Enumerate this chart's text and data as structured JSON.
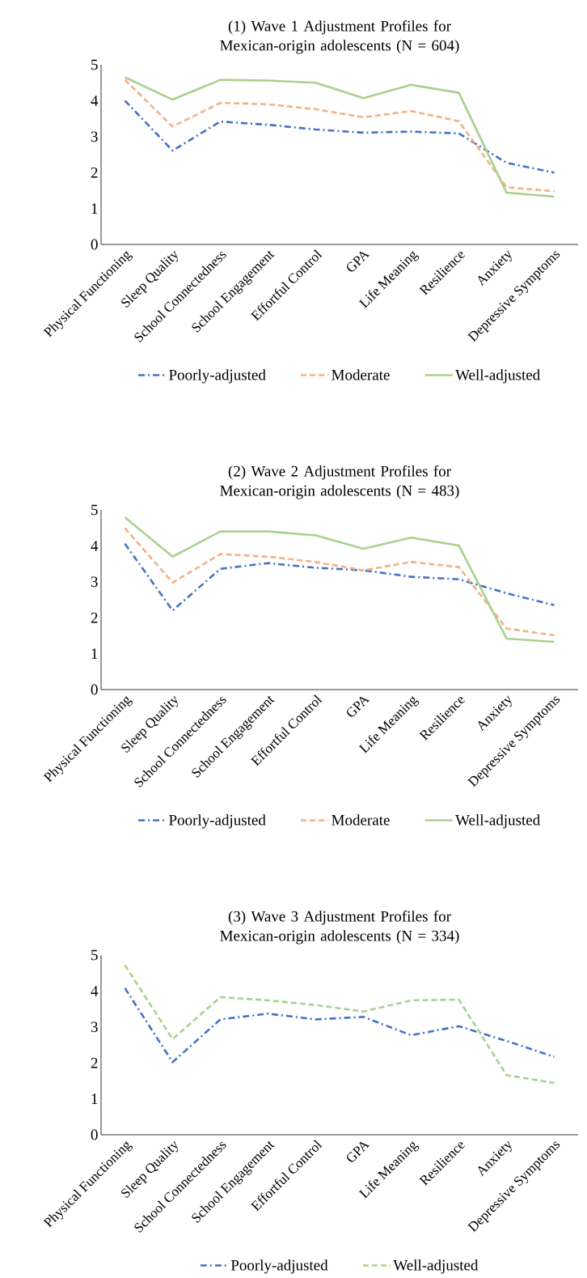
{
  "chart_data": [
    {
      "type": "line",
      "title": "(1) Wave 1 Adjustment Profiles for Mexican-origin adolescents (N = 604)",
      "categories": [
        "Physical Functioning",
        "Sleep Quality",
        "School Connectedness",
        "School Engagement",
        "Effortful Control",
        "GPA",
        "Life Meaning",
        "Resilience",
        "Anxiety",
        "Depressive Symptoms"
      ],
      "ylim": [
        0,
        5
      ],
      "yticks": [
        0,
        1,
        2,
        3,
        4,
        5
      ],
      "grid": false,
      "legend": "bottom",
      "series": [
        {
          "name": "Poorly-adjusted",
          "color": "#4472c4",
          "line_style": "dashdot",
          "values": [
            4.0,
            2.61,
            3.42,
            3.33,
            3.2,
            3.11,
            3.14,
            3.09,
            2.27,
            2.0
          ]
        },
        {
          "name": "Moderate",
          "color": "#f4b183",
          "line_style": "dashed",
          "values": [
            4.58,
            3.28,
            3.94,
            3.9,
            3.76,
            3.54,
            3.71,
            3.43,
            1.59,
            1.48
          ]
        },
        {
          "name": "Well-adjusted",
          "color": "#a9d18e",
          "line_style": "solid",
          "values": [
            4.65,
            4.03,
            4.58,
            4.56,
            4.5,
            4.07,
            4.44,
            4.22,
            1.44,
            1.33
          ]
        }
      ]
    },
    {
      "type": "line",
      "title": "(2) Wave 2 Adjustment Profiles for Mexican-origin adolescents (N = 483)",
      "categories": [
        "Physical Functioning",
        "Sleep Quality",
        "School Connectedness",
        "School Engagement",
        "Effortful Control",
        "GPA",
        "Life Meaning",
        "Resilience",
        "Anxiety",
        "Depressive Symptoms"
      ],
      "ylim": [
        0,
        5
      ],
      "yticks": [
        0,
        1,
        2,
        3,
        4,
        5
      ],
      "grid": false,
      "legend": "bottom",
      "series": [
        {
          "name": "Poorly-adjusted",
          "color": "#4472c4",
          "line_style": "dashdot",
          "values": [
            4.06,
            2.2,
            3.36,
            3.52,
            3.39,
            3.32,
            3.14,
            3.07,
            2.68,
            2.35
          ]
        },
        {
          "name": "Moderate",
          "color": "#f4b183",
          "line_style": "dashed",
          "values": [
            4.49,
            2.98,
            3.77,
            3.7,
            3.55,
            3.32,
            3.55,
            3.41,
            1.7,
            1.51
          ]
        },
        {
          "name": "Well-adjusted",
          "color": "#a9d18e",
          "line_style": "solid",
          "values": [
            4.79,
            3.7,
            4.4,
            4.4,
            4.29,
            3.92,
            4.23,
            4.01,
            1.42,
            1.33
          ]
        }
      ]
    },
    {
      "type": "line",
      "title": "(3) Wave 3 Adjustment Profiles for Mexican-origin adolescents (N = 334)",
      "categories": [
        "Physical Functioning",
        "Sleep Quality",
        "School Connectedness",
        "School Engagement",
        "Effortful Control",
        "GPA",
        "Life Meaning",
        "Resilience",
        "Anxiety",
        "Depressive Symptoms"
      ],
      "ylim": [
        0,
        5
      ],
      "yticks": [
        0,
        1,
        2,
        3,
        4,
        5
      ],
      "grid": false,
      "legend": "bottom",
      "series": [
        {
          "name": "Poorly-adjusted",
          "color": "#4472c4",
          "line_style": "dashdot",
          "values": [
            4.08,
            2.02,
            3.21,
            3.37,
            3.21,
            3.28,
            2.77,
            3.02,
            2.61,
            2.17
          ]
        },
        {
          "name": "Well-adjusted",
          "color": "#a9d18e",
          "line_style": "dashed",
          "values": [
            4.72,
            2.66,
            3.83,
            3.74,
            3.61,
            3.43,
            3.74,
            3.76,
            1.66,
            1.44
          ]
        }
      ]
    }
  ]
}
